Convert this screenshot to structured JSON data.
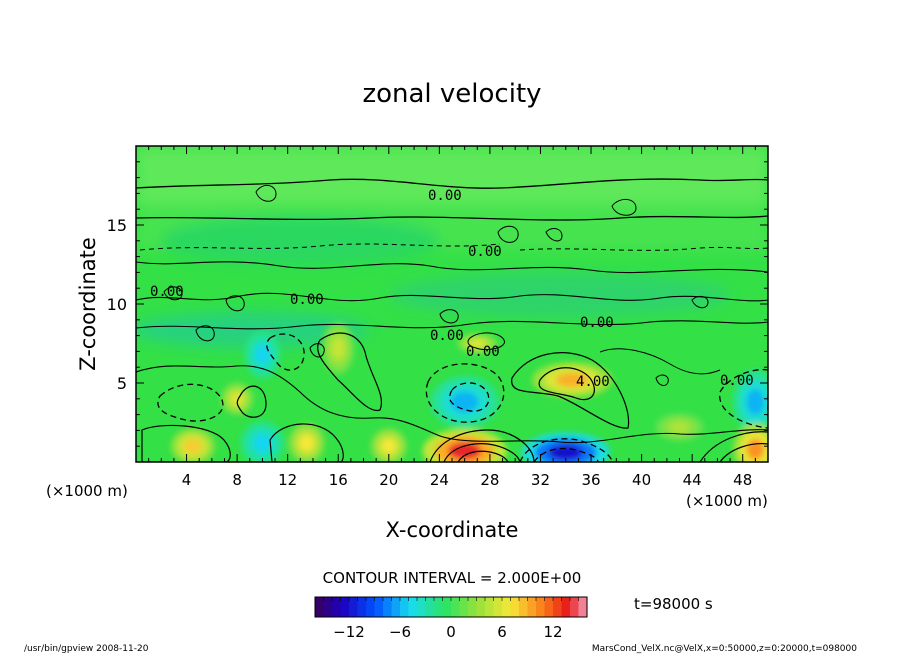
{
  "chart_data": {
    "type": "heatmap",
    "title": "zonal velocity",
    "xlabel": "X-coordinate",
    "ylabel": "Z-coordinate",
    "x_unit": "(×1000 m)",
    "y_unit": "(×1000 m)",
    "xlim": [
      0,
      50
    ],
    "ylim": [
      0,
      20
    ],
    "x_ticks": [
      "4",
      "8",
      "12",
      "16",
      "20",
      "24",
      "28",
      "32",
      "36",
      "40",
      "44",
      "48"
    ],
    "y_ticks": [
      "5",
      "10",
      "15"
    ],
    "contour_interval_text": "CONTOUR INTERVAL = 2.000E+00",
    "time_text": "t=98000 s",
    "contour_labels": [
      "0.00",
      "0.00",
      "0.00",
      "0.00",
      "0.00",
      "0.00",
      "0.00",
      "0.00",
      "4.00"
    ],
    "colorbar": {
      "min": -16,
      "max": 16,
      "tick_labels": [
        "−12",
        "−6",
        "0",
        "6",
        "12"
      ]
    },
    "features": [
      {
        "x": 26,
        "z": 3.8,
        "value": -6,
        "note": "negative core"
      },
      {
        "x": 34,
        "z": 0.6,
        "value": -12,
        "note": "strong negative at surface"
      },
      {
        "x": 10,
        "z": 1.2,
        "value": -5
      },
      {
        "x": 49,
        "z": 3.8,
        "value": -6
      },
      {
        "x": 10,
        "z": 6.8,
        "value": -5
      },
      {
        "x": 26,
        "z": 0.7,
        "value": 14,
        "note": "strong positive at surface"
      },
      {
        "x": 34.5,
        "z": 5.2,
        "value": 9
      },
      {
        "x": 13.5,
        "z": 1.2,
        "value": 7
      },
      {
        "x": 16,
        "z": 7.2,
        "value": 5
      },
      {
        "x": 20,
        "z": 1.0,
        "value": 7
      },
      {
        "x": 4.5,
        "z": 1.0,
        "value": 8
      },
      {
        "x": 49,
        "z": 0.8,
        "value": 10
      },
      {
        "x": 8,
        "z": 4.0,
        "value": 6
      },
      {
        "x": 43,
        "z": 2.2,
        "value": 4
      },
      {
        "x": 27,
        "z": 7.5,
        "value": 6
      }
    ]
  },
  "footer": {
    "left": "/usr/bin/gpview  2008-11-20",
    "right": "MarsCond_VelX.nc@VelX,x=0:50000,z=0:20000,t=098000"
  },
  "colors": {
    "background": "#ffffff",
    "frame": "#000000"
  }
}
